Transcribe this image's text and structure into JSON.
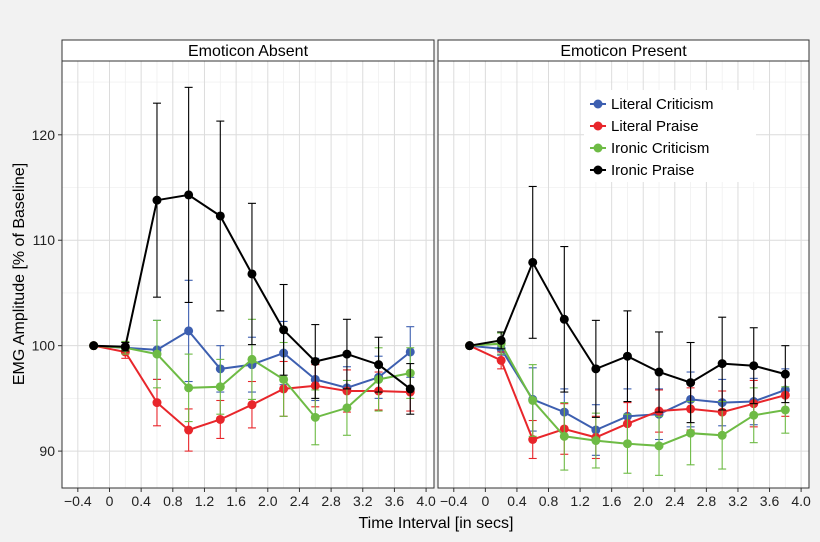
{
  "chart_data": {
    "type": "line",
    "ylabel": "EMG Amplitude [% of Baseline]",
    "xlabel": "Time Interval [in secs]",
    "xlim": [
      -0.6,
      4.1
    ],
    "ylim": [
      86.5,
      127
    ],
    "x_ticks": [
      -0.4,
      0,
      0.4,
      0.8,
      1.2,
      1.6,
      2.0,
      2.4,
      2.8,
      3.2,
      3.6,
      4.0
    ],
    "x_tick_labels": [
      "−0.4",
      "0",
      "0.4",
      "0.8",
      "1.2",
      "1.6",
      "2.0",
      "2.4",
      "2.8",
      "3.2",
      "3.6",
      "4.0"
    ],
    "y_ticks": [
      90,
      100,
      110,
      120
    ],
    "y_tick_labels": [
      "90",
      "100",
      "110",
      "120"
    ],
    "grid": true,
    "legend_position": "top-right of right panel",
    "legend": [
      "Literal Criticism",
      "Literal Praise",
      "Ironic Criticism",
      "Ironic Praise"
    ],
    "panels": [
      {
        "title": "Emoticon Absent",
        "series": [
          {
            "name": "Literal Criticism",
            "color": "#3d5fb0",
            "x": [
              -0.2,
              0.2,
              0.6,
              1.0,
              1.4,
              1.8,
              2.2,
              2.6,
              3.0,
              3.4,
              3.8
            ],
            "y": [
              100,
              99.8,
              99.6,
              101.4,
              97.8,
              98.2,
              99.3,
              96.8,
              96.0,
              97.0,
              99.4
            ],
            "err": [
              0,
              0.5,
              2.8,
              4.8,
              2.2,
              2.6,
              3.0,
              2.0,
              2.0,
              2.0,
              2.4
            ]
          },
          {
            "name": "Literal Praise",
            "color": "#e8262b",
            "x": [
              -0.2,
              0.2,
              0.6,
              1.0,
              1.4,
              1.8,
              2.2,
              2.6,
              3.0,
              3.4,
              3.8
            ],
            "y": [
              100,
              99.4,
              94.6,
              92.0,
              93.0,
              94.4,
              95.9,
              96.2,
              95.7,
              95.7,
              95.6
            ],
            "err": [
              0,
              0.6,
              2.2,
              2.0,
              1.8,
              2.2,
              2.6,
              2.0,
              2.0,
              1.8,
              1.8
            ]
          },
          {
            "name": "Ironic Criticism",
            "color": "#6ebb45",
            "x": [
              -0.2,
              0.2,
              0.6,
              1.0,
              1.4,
              1.8,
              2.2,
              2.6,
              3.0,
              3.4,
              3.8
            ],
            "y": [
              100,
              99.8,
              99.2,
              96.0,
              96.1,
              98.7,
              96.8,
              93.2,
              94.1,
              96.8,
              97.4
            ],
            "err": [
              0,
              0.6,
              3.2,
              3.2,
              2.6,
              3.8,
              3.5,
              2.6,
              2.6,
              3.0,
              2.4
            ]
          },
          {
            "name": "Ironic Praise",
            "color": "#000000",
            "x": [
              -0.2,
              0.2,
              0.6,
              1.0,
              1.4,
              1.8,
              2.2,
              2.6,
              3.0,
              3.4,
              3.8
            ],
            "y": [
              100,
              99.9,
              113.8,
              114.3,
              112.3,
              106.8,
              101.5,
              98.5,
              99.2,
              98.2,
              95.9
            ],
            "err": [
              0,
              0.4,
              9.2,
              10.2,
              9.0,
              6.7,
              4.3,
              3.5,
              3.3,
              2.6,
              2.4
            ]
          }
        ]
      },
      {
        "title": "Emoticon Present",
        "series": [
          {
            "name": "Literal Criticism",
            "color": "#3d5fb0",
            "x": [
              -0.2,
              0.2,
              0.6,
              1.0,
              1.4,
              1.8,
              2.2,
              2.6,
              3.0,
              3.4,
              3.8
            ],
            "y": [
              100,
              99.7,
              94.9,
              93.7,
              92.0,
              93.3,
              93.5,
              94.9,
              94.6,
              94.7,
              95.8
            ],
            "err": [
              0,
              0.6,
              3.0,
              2.2,
              2.4,
              2.6,
              2.4,
              2.6,
              2.2,
              2.2,
              2.0
            ]
          },
          {
            "name": "Literal Praise",
            "color": "#e8262b",
            "x": [
              -0.2,
              0.2,
              0.6,
              1.0,
              1.4,
              1.8,
              2.2,
              2.6,
              3.0,
              3.4,
              3.8
            ],
            "y": [
              100,
              98.6,
              91.1,
              92.1,
              91.3,
              92.6,
              93.8,
              94.0,
              93.7,
              94.5,
              95.3
            ],
            "err": [
              0,
              0.8,
              1.8,
              2.4,
              2.0,
              2.0,
              2.0,
              2.0,
              2.0,
              2.2,
              2.0
            ]
          },
          {
            "name": "Ironic Criticism",
            "color": "#6ebb45",
            "x": [
              -0.2,
              0.2,
              0.6,
              1.0,
              1.4,
              1.8,
              2.2,
              2.6,
              3.0,
              3.4,
              3.8
            ],
            "y": [
              100,
              100.2,
              94.8,
              91.4,
              91.0,
              90.7,
              90.5,
              91.7,
              91.5,
              93.4,
              93.9
            ],
            "err": [
              0,
              1.0,
              3.4,
              3.2,
              2.6,
              2.8,
              2.8,
              3.0,
              3.2,
              2.6,
              2.2
            ]
          },
          {
            "name": "Ironic Praise",
            "color": "#000000",
            "x": [
              -0.2,
              0.2,
              0.6,
              1.0,
              1.4,
              1.8,
              2.2,
              2.6,
              3.0,
              3.4,
              3.8
            ],
            "y": [
              100,
              100.5,
              107.9,
              102.5,
              97.8,
              99.0,
              97.5,
              96.5,
              98.3,
              98.1,
              97.3
            ],
            "err": [
              0,
              0.8,
              7.2,
              6.9,
              4.6,
              4.3,
              3.8,
              3.8,
              4.4,
              3.6,
              2.7
            ]
          }
        ]
      }
    ]
  }
}
